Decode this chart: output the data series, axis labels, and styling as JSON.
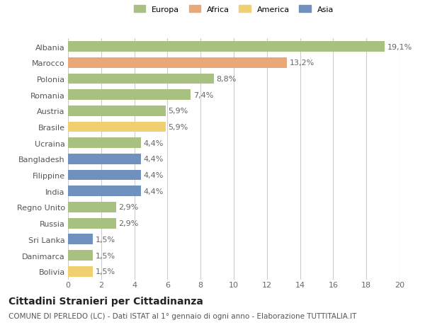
{
  "countries": [
    "Albania",
    "Marocco",
    "Polonia",
    "Romania",
    "Austria",
    "Brasile",
    "Ucraina",
    "Bangladesh",
    "Filippine",
    "India",
    "Regno Unito",
    "Russia",
    "Sri Lanka",
    "Danimarca",
    "Bolivia"
  ],
  "values": [
    19.1,
    13.2,
    8.8,
    7.4,
    5.9,
    5.9,
    4.4,
    4.4,
    4.4,
    4.4,
    2.9,
    2.9,
    1.5,
    1.5,
    1.5
  ],
  "labels": [
    "19,1%",
    "13,2%",
    "8,8%",
    "7,4%",
    "5,9%",
    "5,9%",
    "4,4%",
    "4,4%",
    "4,4%",
    "4,4%",
    "2,9%",
    "2,9%",
    "1,5%",
    "1,5%",
    "1,5%"
  ],
  "continents": [
    "Europa",
    "Africa",
    "Europa",
    "Europa",
    "Europa",
    "America",
    "Europa",
    "Asia",
    "Asia",
    "Asia",
    "Europa",
    "Europa",
    "Asia",
    "Europa",
    "America"
  ],
  "colors": {
    "Europa": "#a8c080",
    "Africa": "#e8a878",
    "America": "#f0d070",
    "Asia": "#7090c0"
  },
  "legend_labels": [
    "Europa",
    "Africa",
    "America",
    "Asia"
  ],
  "legend_colors": [
    "#a8c080",
    "#e8a878",
    "#f0d070",
    "#7090c0"
  ],
  "title": "Cittadini Stranieri per Cittadinanza",
  "subtitle": "COMUNE DI PERLEDO (LC) - Dati ISTAT al 1° gennaio di ogni anno - Elaborazione TUTTITALIA.IT",
  "xlim": [
    0,
    20
  ],
  "xticks": [
    0,
    2,
    4,
    6,
    8,
    10,
    12,
    14,
    16,
    18,
    20
  ],
  "background_color": "#ffffff",
  "grid_color": "#cccccc",
  "bar_height": 0.65,
  "label_fontsize": 8,
  "tick_fontsize": 8,
  "title_fontsize": 10,
  "subtitle_fontsize": 7.5
}
